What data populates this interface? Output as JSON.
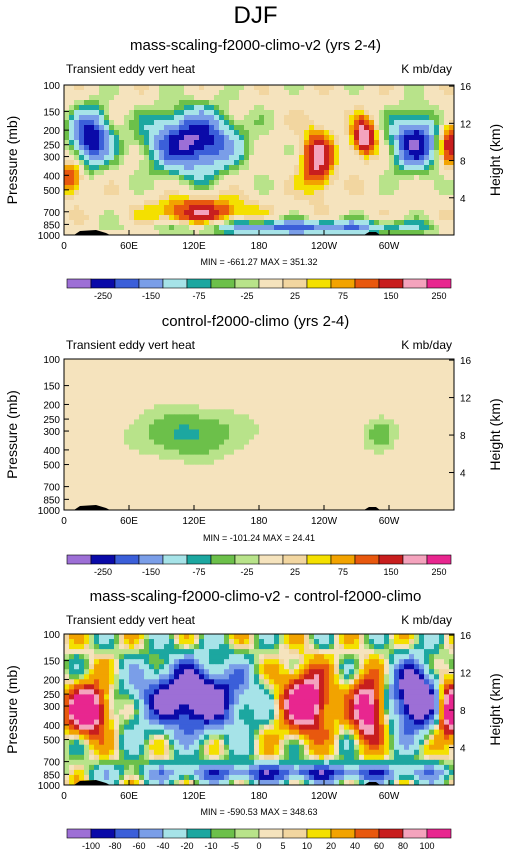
{
  "title": "DJF",
  "chart_data": [
    {
      "type": "heatmap",
      "title": "mass-scaling-f2000-climo-v2 (yrs 2-4)",
      "left_label": "Transient eddy vert heat",
      "right_label": "K mb/day",
      "ylabel": "Pressure (mb)",
      "y2label": "Height (km)",
      "x_ticks": [
        "0",
        "60E",
        "120E",
        "180",
        "120W",
        "60W"
      ],
      "y_ticks": [
        "100",
        "150",
        "200",
        "250",
        "300",
        "400",
        "500",
        "700",
        "850",
        "1000"
      ],
      "y2_ticks": [
        "16",
        "12",
        "8",
        "4"
      ],
      "min_max": "MIN = -661.27  MAX = 351.32",
      "colorbar_labels": [
        "-250",
        "-150",
        "-75",
        "-25",
        "25",
        "75",
        "150",
        "250"
      ],
      "colors": [
        "#9d6fd6",
        "#0a0aa8",
        "#3b5fd9",
        "#7a9ee8",
        "#a6e3e8",
        "#1ca7a0",
        "#6cc04a",
        "#b8e38a",
        "#f5e3bd",
        "#f2d6a0",
        "#f4e000",
        "#f2a300",
        "#e8580e",
        "#c81e1e",
        "#f4a3bd",
        "#e8268f"
      ]
    },
    {
      "type": "heatmap",
      "title": "control-f2000-climo (yrs 2-4)",
      "left_label": "Transient eddy vert heat",
      "right_label": "K mb/day",
      "ylabel": "Pressure (mb)",
      "y2label": "Height (km)",
      "x_ticks": [
        "0",
        "60E",
        "120E",
        "180",
        "120W",
        "60W"
      ],
      "y_ticks": [
        "100",
        "150",
        "200",
        "250",
        "300",
        "400",
        "500",
        "700",
        "850",
        "1000"
      ],
      "y2_ticks": [
        "16",
        "12",
        "8",
        "4"
      ],
      "min_max": "MIN = -101.24  MAX = 24.41",
      "colorbar_labels": [
        "-250",
        "-150",
        "-75",
        "-25",
        "25",
        "75",
        "150",
        "250"
      ],
      "colors": [
        "#9d6fd6",
        "#0a0aa8",
        "#3b5fd9",
        "#7a9ee8",
        "#a6e3e8",
        "#1ca7a0",
        "#6cc04a",
        "#b8e38a",
        "#f5e3bd",
        "#f2d6a0",
        "#f4e000",
        "#f2a300",
        "#e8580e",
        "#c81e1e",
        "#f4a3bd",
        "#e8268f"
      ]
    },
    {
      "type": "heatmap",
      "title": "mass-scaling-f2000-climo-v2 - control-f2000-climo",
      "left_label": "Transient eddy vert heat",
      "right_label": "K mb/day",
      "ylabel": "Pressure (mb)",
      "y2label": "Height (km)",
      "x_ticks": [
        "0",
        "60E",
        "120E",
        "180",
        "120W",
        "60W"
      ],
      "y_ticks": [
        "100",
        "150",
        "200",
        "250",
        "300",
        "400",
        "500",
        "700",
        "850",
        "1000"
      ],
      "y2_ticks": [
        "16",
        "12",
        "8",
        "4"
      ],
      "min_max": "MIN = -590.53  MAX = 348.63",
      "colorbar_labels": [
        "-100",
        "-80",
        "-60",
        "-40",
        "-20",
        "-10",
        "-5",
        "0",
        "5",
        "10",
        "20",
        "40",
        "60",
        "80",
        "100"
      ],
      "colors": [
        "#9d6fd6",
        "#0a0aa8",
        "#3b5fd9",
        "#7a9ee8",
        "#a6e3e8",
        "#1ca7a0",
        "#6cc04a",
        "#b8e38a",
        "#f5e3bd",
        "#f2d6a0",
        "#f4e000",
        "#f2a300",
        "#e8580e",
        "#c81e1e",
        "#f4a3bd",
        "#e8268f"
      ]
    }
  ]
}
